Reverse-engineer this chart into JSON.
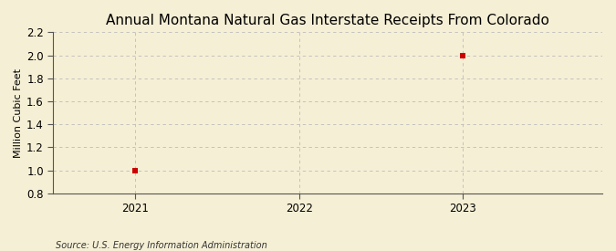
{
  "title": "Annual Montana Natural Gas Interstate Receipts From Colorado",
  "ylabel": "Million Cubic Feet",
  "source": "Source: U.S. Energy Information Administration",
  "x_data": [
    2021,
    2023
  ],
  "y_data": [
    1.0,
    2.0
  ],
  "xlim": [
    2020.5,
    2023.85
  ],
  "ylim": [
    0.8,
    2.2
  ],
  "yticks": [
    0.8,
    1.0,
    1.2,
    1.4,
    1.6,
    1.8,
    2.0,
    2.2
  ],
  "xticks": [
    2021,
    2022,
    2023
  ],
  "marker_color": "#cc0000",
  "marker_size": 4,
  "grid_color": "#bbbbbb",
  "background_color": "#f5efd5",
  "title_fontsize": 11,
  "label_fontsize": 8,
  "tick_fontsize": 8.5,
  "source_fontsize": 7
}
